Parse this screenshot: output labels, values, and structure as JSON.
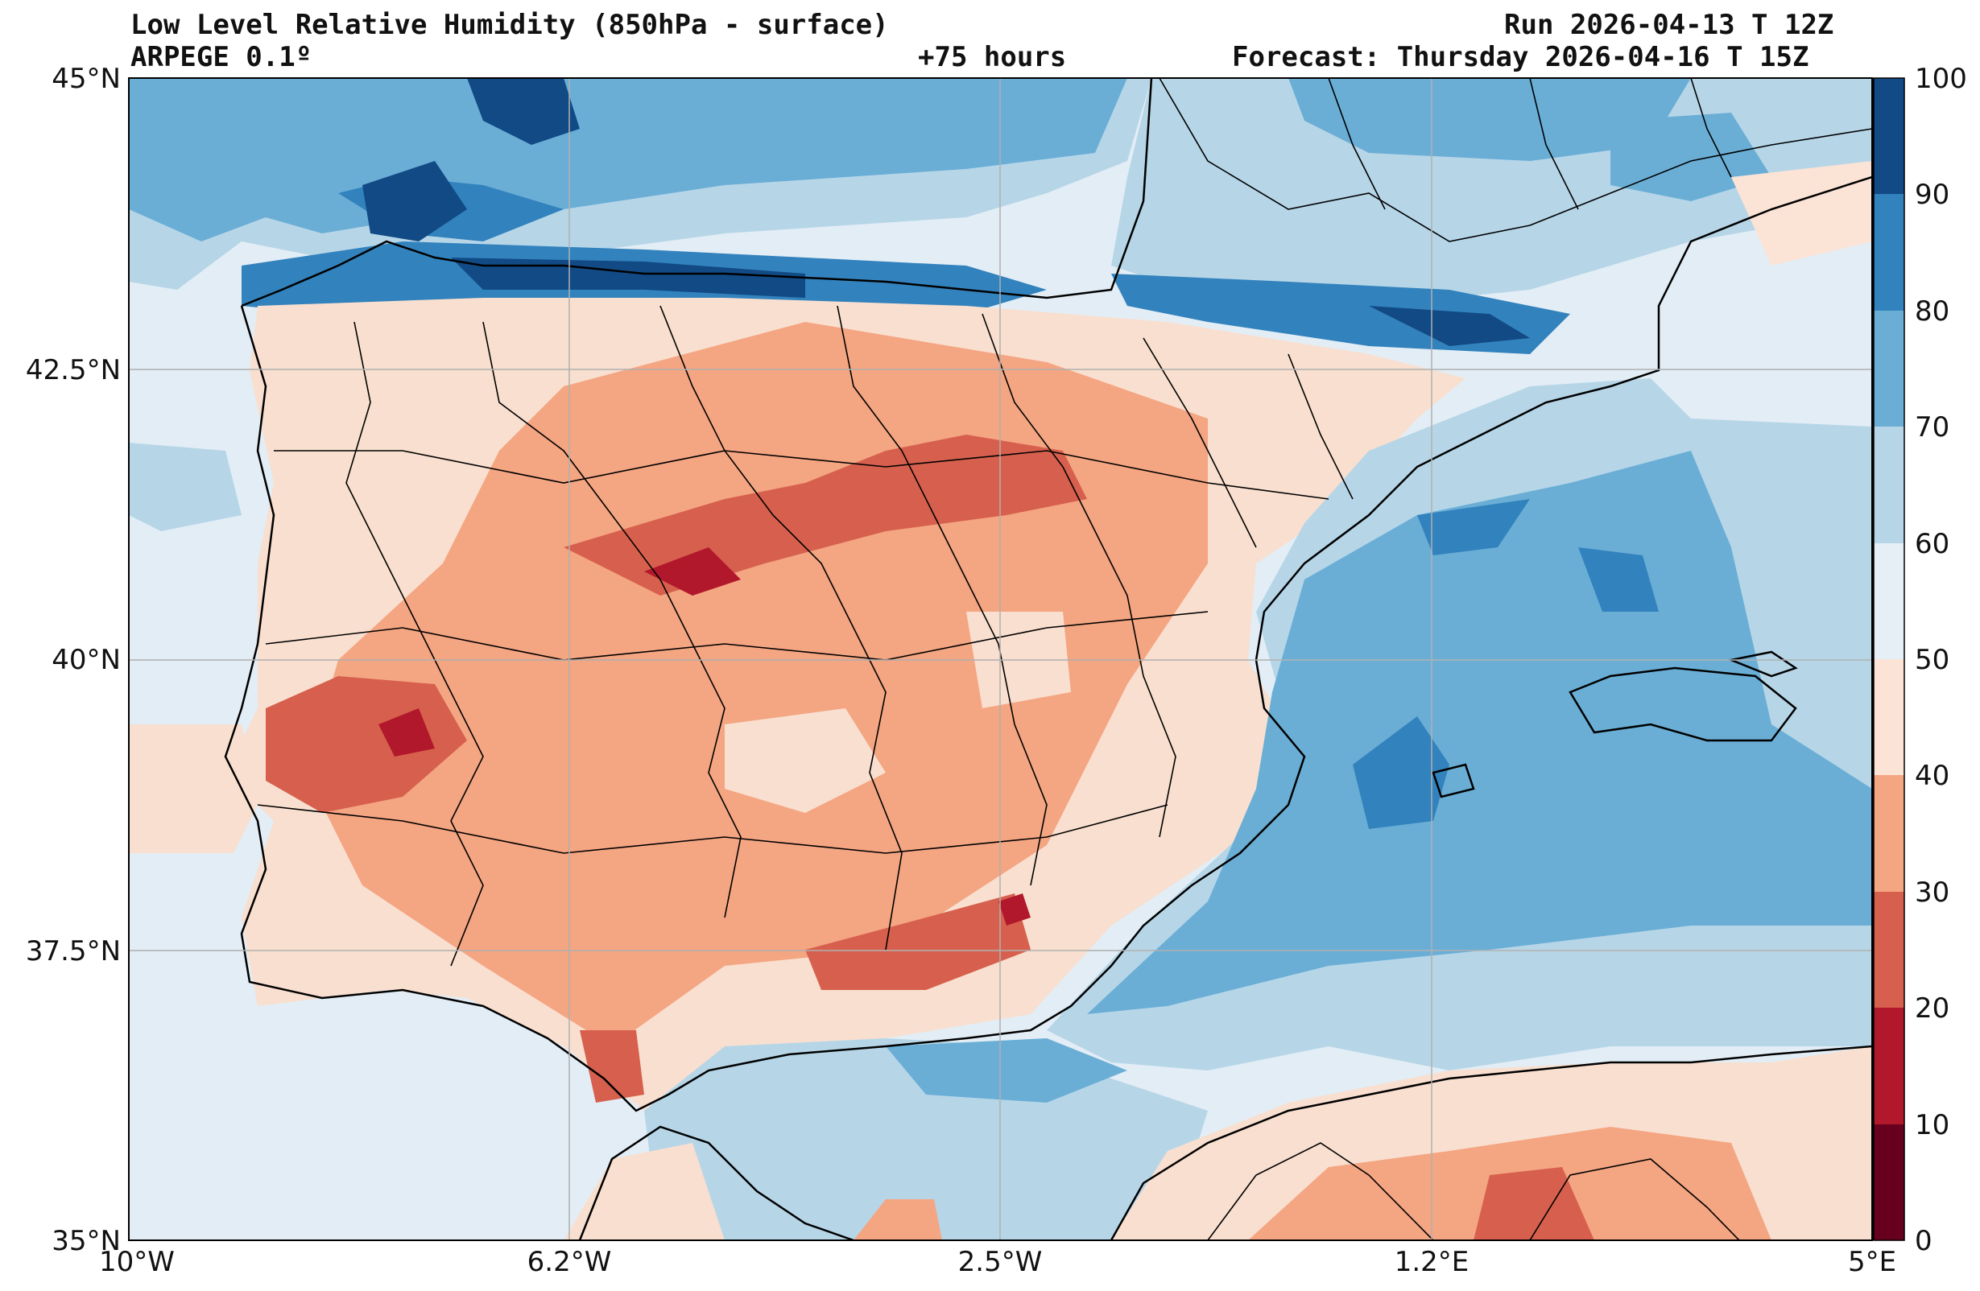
{
  "header": {
    "title": "Low Level Relative Humidity (850hPa - surface)",
    "model": "ARPEGE 0.1º",
    "lead": "+75 hours",
    "run": "Run 2026-04-13 T 12Z",
    "forecast": "Forecast: Thursday 2026-04-16 T 15Z"
  },
  "axes": {
    "lat_ticks": [
      "45°N",
      "42.5°N",
      "40°N",
      "37.5°N",
      "35°N"
    ],
    "lon_ticks": [
      "10°W",
      "6.2°W",
      "2.5°W",
      "1.2°E",
      "5°E"
    ]
  },
  "colorbar": {
    "ticks": [
      "0",
      "10",
      "20",
      "30",
      "40",
      "50",
      "60",
      "70",
      "80",
      "90",
      "100"
    ],
    "colors": [
      "#67001f",
      "#b2182b",
      "#d6604d",
      "#f4a582",
      "#fbe3d6",
      "#e6eff6",
      "#b6d6e8",
      "#6aaed6",
      "#3282bd",
      "#114a85"
    ]
  },
  "palette": {
    "sea_default": "#e3edf5",
    "land_default": "#f9dfcf"
  }
}
